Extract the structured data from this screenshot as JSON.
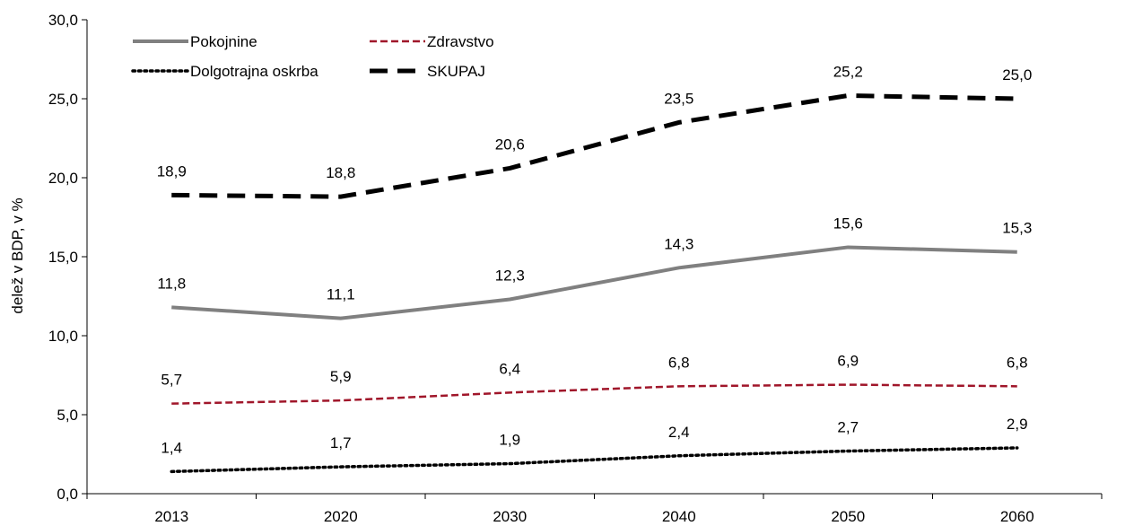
{
  "chart_data": {
    "type": "line",
    "title": "",
    "xlabel": "",
    "ylabel": "delež v BDP, v %",
    "categories": [
      "2013",
      "2020",
      "2030",
      "2040",
      "2050",
      "2060"
    ],
    "ylim": [
      0,
      30
    ],
    "yticks": [
      "0,0",
      "5,0",
      "10,0",
      "15,0",
      "20,0",
      "25,0",
      "30,0"
    ],
    "grid": false,
    "legend_position": "top-left",
    "series": [
      {
        "name": "Pokojnine",
        "values": [
          11.8,
          11.1,
          12.3,
          14.3,
          15.6,
          15.3
        ],
        "labels": [
          "11,8",
          "11,1",
          "12,3",
          "14,3",
          "15,6",
          "15,3"
        ],
        "color": "#808080",
        "style": "solid"
      },
      {
        "name": "Zdravstvo",
        "values": [
          5.7,
          5.9,
          6.4,
          6.8,
          6.9,
          6.8
        ],
        "labels": [
          "5,7",
          "5,9",
          "6,4",
          "6,8",
          "6,9",
          "6,8"
        ],
        "color": "#a0162a",
        "style": "dashed"
      },
      {
        "name": "Dolgotrajna oskrba",
        "values": [
          1.4,
          1.7,
          1.9,
          2.4,
          2.7,
          2.9
        ],
        "labels": [
          "1,4",
          "1,7",
          "1,9",
          "2,4",
          "2,7",
          "2,9"
        ],
        "color": "#000000",
        "style": "dotted"
      },
      {
        "name": "SKUPAJ",
        "values": [
          18.9,
          18.8,
          20.6,
          23.5,
          25.2,
          25.0
        ],
        "labels": [
          "18,9",
          "18,8",
          "20,6",
          "23,5",
          "25,2",
          "25,0"
        ],
        "color": "#000000",
        "style": "long-dash"
      }
    ]
  }
}
